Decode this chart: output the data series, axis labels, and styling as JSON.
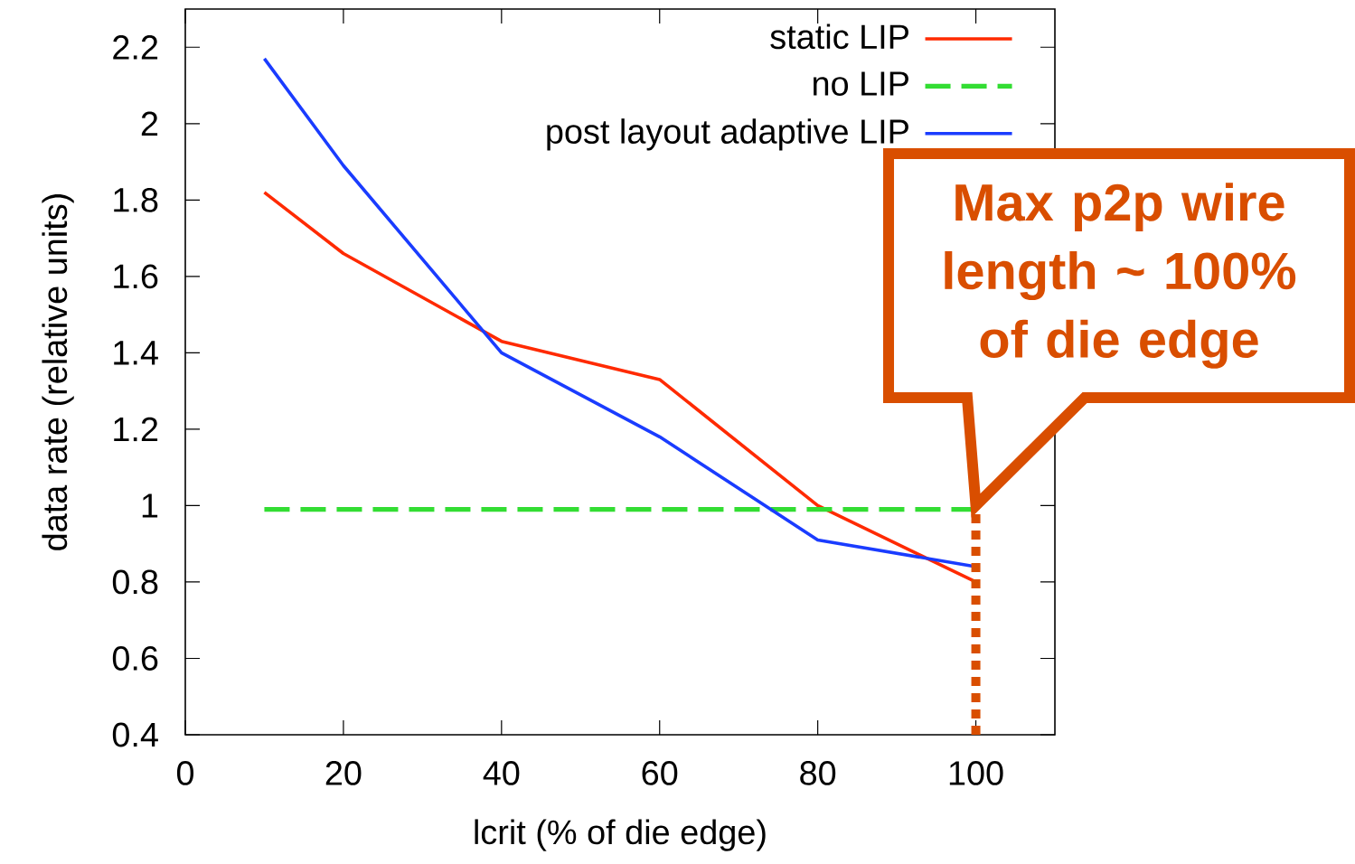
{
  "chart_data": {
    "type": "line",
    "xlabel": "lcrit (% of die edge)",
    "ylabel": "data rate (relative units)",
    "x": [
      10,
      20,
      40,
      60,
      80,
      100
    ],
    "series": [
      {
        "name": "static LIP",
        "color": "#ff2a00",
        "values": [
          1.82,
          1.66,
          1.43,
          1.33,
          1.0,
          0.8
        ],
        "line_style": "solid"
      },
      {
        "name": "no LIP",
        "color": "#33dd33",
        "values": [
          0.99,
          0.99,
          0.99,
          0.99,
          0.99,
          0.99
        ],
        "line_style": "dashed"
      },
      {
        "name": "post layout adaptive LIP",
        "color": "#1a3cff",
        "values": [
          2.17,
          1.89,
          1.4,
          1.18,
          0.91,
          0.84
        ],
        "line_style": "solid"
      }
    ],
    "xlim": [
      0,
      110
    ],
    "ylim": [
      0.4,
      2.3
    ],
    "xticks": [
      0,
      20,
      40,
      60,
      80,
      100
    ],
    "yticks": [
      0.4,
      0.6,
      0.8,
      1,
      1.2,
      1.4,
      1.6,
      1.8,
      2,
      2.2
    ],
    "legend": "top right",
    "marker": "none",
    "grid": false,
    "ref_lines": [
      {
        "axis": "x",
        "value": 100,
        "color": "#d94e00",
        "line_style": "dotted"
      }
    ],
    "annotations": [
      {
        "text": "Max p2p wire length ~ 100% of die edge",
        "x": 100,
        "y": 1.0
      }
    ]
  }
}
